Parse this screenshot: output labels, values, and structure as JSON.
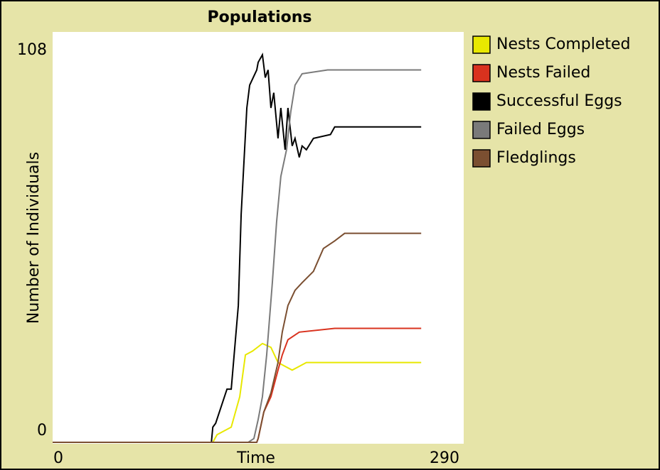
{
  "chart_data": {
    "type": "line",
    "title": "Populations",
    "x_label": "Time",
    "y_label": "Number of Individuals",
    "xlim": [
      0,
      290
    ],
    "xticks": [
      0,
      290
    ],
    "ylim": [
      0,
      108
    ],
    "yticks": [
      0,
      108
    ],
    "series": [
      {
        "name": "Nests Completed",
        "color": "#e8e800",
        "x": [
          0,
          113,
          116,
          126,
          132,
          136,
          141,
          148,
          154,
          159,
          164,
          169,
          174,
          179,
          194,
          260
        ],
        "values": [
          0,
          0,
          2,
          4,
          12,
          23,
          24,
          26,
          25,
          21,
          20,
          19,
          20,
          21,
          21,
          21
        ]
      },
      {
        "name": "Nests Failed",
        "color": "#d9321e",
        "x": [
          0,
          144,
          145,
          149,
          154,
          159,
          162,
          166,
          174,
          199,
          260
        ],
        "values": [
          0,
          0,
          1,
          8,
          12,
          19,
          23,
          27,
          29,
          30,
          30
        ]
      },
      {
        "name": "Successful Eggs",
        "color": "#000000",
        "x": [
          0,
          112,
          113,
          115,
          123,
          126,
          131,
          133,
          137,
          139,
          144,
          145,
          148,
          150,
          152,
          154,
          156,
          159,
          161,
          164,
          166,
          169,
          171,
          174,
          176,
          179,
          184,
          196,
          199,
          260
        ],
        "values": [
          0,
          0,
          4,
          5,
          14,
          14,
          36,
          60,
          88,
          94,
          98,
          100,
          102,
          96,
          98,
          88,
          92,
          80,
          88,
          77,
          88,
          78,
          80,
          75,
          78,
          77,
          80,
          81,
          83,
          83
        ]
      },
      {
        "name": "Failed Eggs",
        "color": "#7a7a7a",
        "x": [
          0,
          138,
          142,
          145,
          148,
          151,
          155,
          158,
          161,
          165,
          168,
          171,
          176,
          194,
          260
        ],
        "values": [
          0,
          0,
          1,
          6,
          12,
          23,
          42,
          58,
          70,
          77,
          87,
          94,
          97,
          98,
          98
        ]
      },
      {
        "name": "Fledglings",
        "color": "#7b4f31",
        "x": [
          0,
          144,
          145,
          149,
          154,
          159,
          162,
          166,
          171,
          176,
          184,
          191,
          199,
          206,
          260
        ],
        "values": [
          0,
          0,
          1,
          8,
          13,
          21,
          29,
          36,
          40,
          42,
          45,
          51,
          53,
          55,
          55
        ]
      }
    ]
  }
}
